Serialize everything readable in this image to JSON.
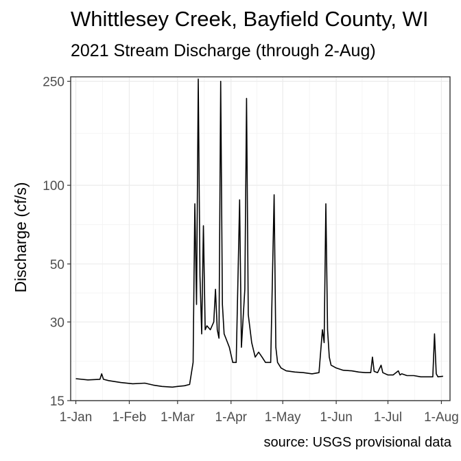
{
  "title": "Whittlesey Creek, Bayfield County, WI",
  "subtitle": "2021 Stream Discharge (through 2-Aug)",
  "caption": "source: USGS provisional data",
  "chart_data": {
    "type": "line",
    "title": "Whittlesey Creek, Bayfield County, WI",
    "subtitle": "2021 Stream Discharge (through 2-Aug)",
    "xlabel": "",
    "ylabel": "Discharge (cf/s)",
    "y_scale": "log",
    "ylim": [
      15,
      260
    ],
    "xlim": [
      "2020-12-29",
      "2021-08-06"
    ],
    "y_ticks": [
      15,
      30,
      50,
      100,
      250
    ],
    "x_ticks": [
      {
        "date": "2021-01-01",
        "label": "1-Jan"
      },
      {
        "date": "2021-02-01",
        "label": "1-Feb"
      },
      {
        "date": "2021-03-01",
        "label": "1-Mar"
      },
      {
        "date": "2021-04-01",
        "label": "1-Apr"
      },
      {
        "date": "2021-05-01",
        "label": "1-May"
      },
      {
        "date": "2021-06-01",
        "label": "1-Jun"
      },
      {
        "date": "2021-07-01",
        "label": "1-Jul"
      },
      {
        "date": "2021-08-01",
        "label": "1-Aug"
      }
    ],
    "grid": true,
    "line_color": "#000000",
    "series": [
      {
        "x": [
          "2021-01-01",
          "2021-01-08",
          "2021-01-15",
          "2021-01-16",
          "2021-01-17",
          "2021-01-20",
          "2021-01-27",
          "2021-02-03",
          "2021-02-10",
          "2021-02-15",
          "2021-02-20",
          "2021-02-26",
          "2021-03-01",
          "2021-03-05",
          "2021-03-08",
          "2021-03-10",
          "2021-03-11",
          "2021-03-12",
          "2021-03-13",
          "2021-03-14",
          "2021-03-15",
          "2021-03-16",
          "2021-03-17",
          "2021-03-18",
          "2021-03-20",
          "2021-03-22",
          "2021-03-23",
          "2021-03-24",
          "2021-03-25",
          "2021-03-26",
          "2021-03-27",
          "2021-03-28",
          "2021-03-29",
          "2021-03-31",
          "2021-04-02",
          "2021-04-04",
          "2021-04-06",
          "2021-04-07",
          "2021-04-09",
          "2021-04-10",
          "2021-04-11",
          "2021-04-13",
          "2021-04-15",
          "2021-04-17",
          "2021-04-19",
          "2021-04-21",
          "2021-04-24",
          "2021-04-26",
          "2021-04-27",
          "2021-04-28",
          "2021-04-30",
          "2021-05-03",
          "2021-05-08",
          "2021-05-13",
          "2021-05-18",
          "2021-05-22",
          "2021-05-24",
          "2021-05-25",
          "2021-05-26",
          "2021-05-27",
          "2021-05-28",
          "2021-05-29",
          "2021-06-01",
          "2021-06-05",
          "2021-06-10",
          "2021-06-14",
          "2021-06-18",
          "2021-06-21",
          "2021-06-22",
          "2021-06-23",
          "2021-06-25",
          "2021-06-27",
          "2021-06-28",
          "2021-07-01",
          "2021-07-04",
          "2021-07-07",
          "2021-07-08",
          "2021-07-09",
          "2021-07-12",
          "2021-07-16",
          "2021-07-20",
          "2021-07-24",
          "2021-07-27",
          "2021-07-28",
          "2021-07-29",
          "2021-07-30",
          "2021-08-02"
        ],
        "y": [
          18.2,
          18.0,
          18.1,
          19.0,
          18.1,
          17.9,
          17.6,
          17.4,
          17.5,
          17.2,
          17.0,
          16.9,
          17.0,
          17.1,
          17.3,
          21,
          85,
          35,
          255,
          45,
          27,
          70,
          28,
          29,
          28,
          30,
          40,
          28,
          26,
          250,
          35,
          27,
          26,
          24,
          21,
          21,
          88,
          24,
          40,
          215,
          32,
          25,
          22,
          23,
          22,
          21,
          21,
          92,
          24,
          21,
          20,
          19.5,
          19.3,
          19.2,
          19.0,
          19.2,
          28,
          25,
          85,
          28,
          22,
          20.5,
          20,
          19.6,
          19.5,
          19.3,
          19.2,
          19.2,
          22,
          19.4,
          19.2,
          20.5,
          19.2,
          18.8,
          18.8,
          19.5,
          18.8,
          19.0,
          18.7,
          18.7,
          18.5,
          18.5,
          18.5,
          27,
          19,
          18.5,
          18.6
        ]
      }
    ]
  }
}
